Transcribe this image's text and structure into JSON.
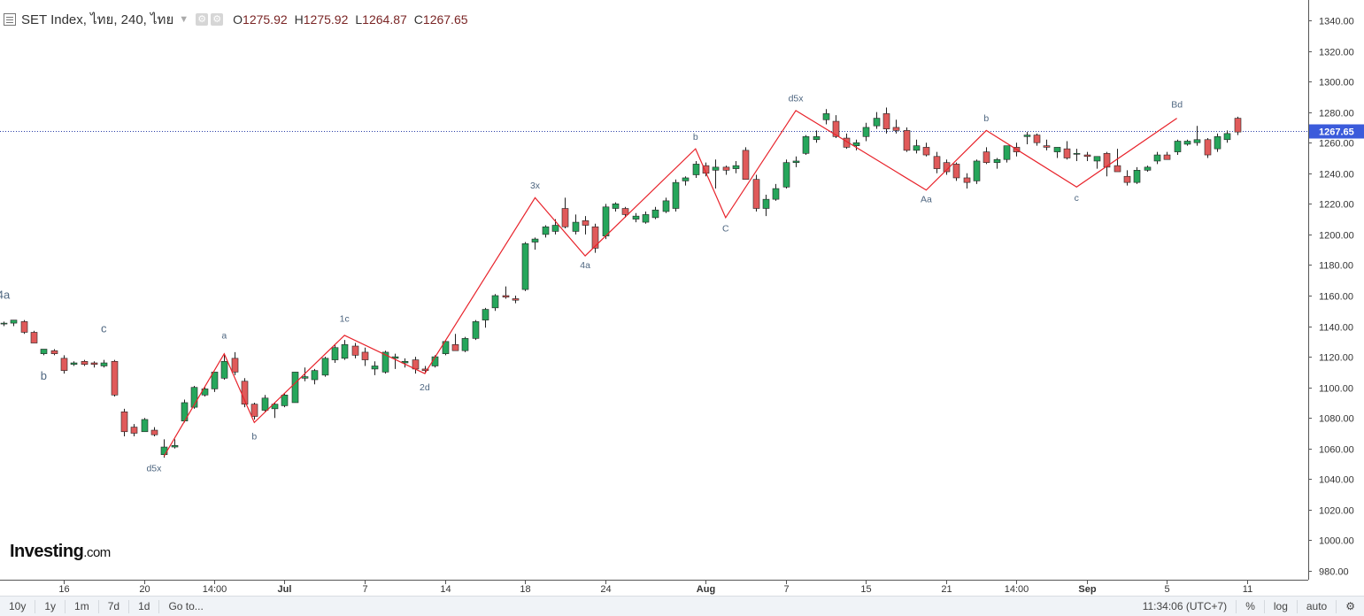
{
  "header": {
    "symbol": "SET Index, ไทย, 240, ไทย",
    "open_key": "O",
    "open": "1275.92",
    "high_key": "H",
    "high": "1275.92",
    "low_key": "L",
    "low": "1264.87",
    "close_key": "C",
    "close": "1267.65"
  },
  "icons": {
    "menu": "menu-icon",
    "caret": "chevron-down-icon",
    "settings": "gear-icon"
  },
  "colors": {
    "up": "#26a65b",
    "down": "#e05a5a",
    "wave": "#e8232b",
    "price_line": "#2b3ea8",
    "price_tag": "#3b5bdb",
    "label": "#4e6680"
  },
  "chart_data": {
    "type": "candlestick",
    "ylim": [
      980,
      1345
    ],
    "yticks": [
      "1340.00",
      "1320.00",
      "1300.00",
      "1280.00",
      "1260.00",
      "1240.00",
      "1220.00",
      "1200.00",
      "1180.00",
      "1160.00",
      "1140.00",
      "1120.00",
      "1100.00",
      "1080.00",
      "1060.00",
      "1040.00",
      "1020.00",
      "1000.00",
      "980.00"
    ],
    "xticks": [
      {
        "label": "16",
        "bar": 6,
        "bold": false
      },
      {
        "label": "20",
        "bar": 14,
        "bold": false
      },
      {
        "label": "14:00",
        "bar": 21,
        "bold": false
      },
      {
        "label": "Jul",
        "bar": 28,
        "bold": true
      },
      {
        "label": "7",
        "bar": 36,
        "bold": false
      },
      {
        "label": "14",
        "bar": 44,
        "bold": false
      },
      {
        "label": "18",
        "bar": 52,
        "bold": false
      },
      {
        "label": "24",
        "bar": 60,
        "bold": false
      },
      {
        "label": "Aug",
        "bar": 70,
        "bold": true
      },
      {
        "label": "7",
        "bar": 78,
        "bold": false
      },
      {
        "label": "15",
        "bar": 86,
        "bold": false
      },
      {
        "label": "21",
        "bar": 94,
        "bold": false
      },
      {
        "label": "14:00",
        "bar": 101,
        "bold": false
      },
      {
        "label": "Sep",
        "bar": 108,
        "bold": true
      },
      {
        "label": "5",
        "bar": 116,
        "bold": false
      },
      {
        "label": "11",
        "bar": 124,
        "bold": false
      }
    ],
    "last_price": "1267.65",
    "candles": [
      [
        1142,
        1143,
        1140,
        1142
      ],
      [
        1142,
        1144,
        1140,
        1144
      ],
      [
        1143,
        1144,
        1135,
        1136
      ],
      [
        1136,
        1137,
        1129,
        1129
      ],
      [
        1122,
        1125,
        1121,
        1125
      ],
      [
        1124,
        1125,
        1121,
        1122
      ],
      [
        1119,
        1121,
        1109,
        1111
      ],
      [
        1115,
        1117,
        1114,
        1116
      ],
      [
        1117,
        1118,
        1114,
        1115
      ],
      [
        1116,
        1117,
        1113,
        1115
      ],
      [
        1114,
        1118,
        1113,
        1116
      ],
      [
        1117,
        1118,
        1094,
        1095
      ],
      [
        1084,
        1086,
        1068,
        1071
      ],
      [
        1074,
        1076,
        1068,
        1070
      ],
      [
        1071,
        1080,
        1071,
        1079
      ],
      [
        1072,
        1074,
        1068,
        1069
      ],
      [
        1056,
        1066,
        1054,
        1061
      ],
      [
        1061,
        1066,
        1060,
        1062
      ],
      [
        1078,
        1092,
        1077,
        1090
      ],
      [
        1087,
        1101,
        1086,
        1100
      ],
      [
        1095,
        1100,
        1094,
        1099
      ],
      [
        1099,
        1110,
        1097,
        1110
      ],
      [
        1106,
        1122,
        1105,
        1117
      ],
      [
        1119,
        1123,
        1108,
        1110
      ],
      [
        1104,
        1106,
        1087,
        1089
      ],
      [
        1089,
        1090,
        1079,
        1081
      ],
      [
        1085,
        1095,
        1084,
        1093
      ],
      [
        1086,
        1090,
        1080,
        1089
      ],
      [
        1088,
        1096,
        1087,
        1095
      ],
      [
        1090,
        1110,
        1090,
        1110
      ],
      [
        1106,
        1113,
        1104,
        1107
      ],
      [
        1105,
        1112,
        1102,
        1111
      ],
      [
        1108,
        1120,
        1107,
        1119
      ],
      [
        1118,
        1128,
        1116,
        1126
      ],
      [
        1119,
        1131,
        1118,
        1128
      ],
      [
        1127,
        1129,
        1119,
        1121
      ],
      [
        1123,
        1126,
        1114,
        1118
      ],
      [
        1112,
        1117,
        1108,
        1114
      ],
      [
        1110,
        1124,
        1109,
        1123
      ],
      [
        1119,
        1122,
        1112,
        1120
      ],
      [
        1116,
        1119,
        1113,
        1117
      ],
      [
        1118,
        1120,
        1109,
        1112
      ],
      [
        1112,
        1114,
        1109,
        1111
      ],
      [
        1114,
        1121,
        1113,
        1120
      ],
      [
        1122,
        1131,
        1121,
        1130
      ],
      [
        1128,
        1135,
        1124,
        1124
      ],
      [
        1124,
        1133,
        1123,
        1132
      ],
      [
        1132,
        1144,
        1131,
        1143
      ],
      [
        1144,
        1152,
        1139,
        1151
      ],
      [
        1152,
        1161,
        1150,
        1160
      ],
      [
        1160,
        1166,
        1158,
        1159
      ],
      [
        1158,
        1160,
        1155,
        1157
      ],
      [
        1164,
        1195,
        1163,
        1194
      ],
      [
        1195,
        1198,
        1190,
        1197
      ],
      [
        1200,
        1206,
        1198,
        1205
      ],
      [
        1202,
        1210,
        1200,
        1206
      ],
      [
        1217,
        1224,
        1204,
        1205
      ],
      [
        1202,
        1213,
        1200,
        1208
      ],
      [
        1209,
        1212,
        1200,
        1206
      ],
      [
        1205,
        1207,
        1188,
        1191
      ],
      [
        1199,
        1220,
        1197,
        1218
      ],
      [
        1217,
        1221,
        1215,
        1220
      ],
      [
        1217,
        1218,
        1211,
        1213
      ],
      [
        1210,
        1214,
        1208,
        1212
      ],
      [
        1208,
        1215,
        1207,
        1213
      ],
      [
        1211,
        1218,
        1210,
        1216
      ],
      [
        1215,
        1224,
        1214,
        1222
      ],
      [
        1217,
        1236,
        1215,
        1234
      ],
      [
        1235,
        1238,
        1232,
        1237
      ],
      [
        1239,
        1248,
        1237,
        1246
      ],
      [
        1245,
        1247,
        1238,
        1240
      ],
      [
        1242,
        1249,
        1230,
        1244
      ],
      [
        1244,
        1245,
        1239,
        1242
      ],
      [
        1243,
        1248,
        1240,
        1245
      ],
      [
        1255,
        1257,
        1236,
        1236
      ],
      [
        1236,
        1239,
        1215,
        1217
      ],
      [
        1217,
        1226,
        1212,
        1223
      ],
      [
        1223,
        1233,
        1222,
        1230
      ],
      [
        1231,
        1249,
        1230,
        1247
      ],
      [
        1247,
        1251,
        1244,
        1248
      ],
      [
        1253,
        1265,
        1252,
        1264
      ],
      [
        1262,
        1268,
        1260,
        1264
      ],
      [
        1275,
        1282,
        1272,
        1279
      ],
      [
        1274,
        1278,
        1263,
        1264
      ],
      [
        1263,
        1266,
        1256,
        1257
      ],
      [
        1258,
        1262,
        1255,
        1260
      ],
      [
        1264,
        1273,
        1261,
        1270
      ],
      [
        1271,
        1280,
        1269,
        1276
      ],
      [
        1279,
        1283,
        1266,
        1269
      ],
      [
        1270,
        1275,
        1266,
        1268
      ],
      [
        1268,
        1270,
        1254,
        1255
      ],
      [
        1255,
        1262,
        1253,
        1258
      ],
      [
        1257,
        1260,
        1251,
        1252
      ],
      [
        1251,
        1254,
        1240,
        1243
      ],
      [
        1247,
        1249,
        1239,
        1241
      ],
      [
        1246,
        1247,
        1235,
        1237
      ],
      [
        1237,
        1240,
        1230,
        1234
      ],
      [
        1235,
        1249,
        1233,
        1248
      ],
      [
        1254,
        1257,
        1246,
        1247
      ],
      [
        1247,
        1250,
        1243,
        1249
      ],
      [
        1249,
        1258,
        1247,
        1258
      ],
      [
        1257,
        1260,
        1251,
        1254
      ],
      [
        1264,
        1267,
        1259,
        1265
      ],
      [
        1265,
        1266,
        1258,
        1260
      ],
      [
        1258,
        1262,
        1255,
        1257
      ],
      [
        1254,
        1257,
        1250,
        1257
      ],
      [
        1256,
        1261,
        1249,
        1250
      ],
      [
        1253,
        1256,
        1248,
        1253
      ],
      [
        1252,
        1254,
        1248,
        1251
      ],
      [
        1248,
        1251,
        1243,
        1251
      ],
      [
        1253,
        1254,
        1238,
        1244
      ],
      [
        1245,
        1256,
        1241,
        1241
      ],
      [
        1238,
        1242,
        1232,
        1234
      ],
      [
        1234,
        1244,
        1233,
        1242
      ],
      [
        1242,
        1245,
        1241,
        1244
      ],
      [
        1248,
        1254,
        1246,
        1252
      ],
      [
        1252,
        1254,
        1249,
        1249
      ],
      [
        1254,
        1262,
        1252,
        1261
      ],
      [
        1259,
        1262,
        1258,
        1261
      ],
      [
        1260,
        1271,
        1258,
        1262
      ],
      [
        1262,
        1263,
        1250,
        1252
      ],
      [
        1256,
        1266,
        1254,
        1264
      ],
      [
        1262,
        1268,
        1260,
        1266
      ],
      [
        1276,
        1277,
        1265,
        1267
      ]
    ],
    "wave_path": [
      [
        16,
        1055
      ],
      [
        22,
        1122
      ],
      [
        25,
        1077
      ],
      [
        34,
        1134
      ],
      [
        42,
        1109
      ],
      [
        53,
        1224
      ],
      [
        58,
        1186
      ],
      [
        69,
        1256
      ],
      [
        72,
        1211
      ],
      [
        79,
        1281
      ],
      [
        92,
        1229
      ],
      [
        98,
        1268
      ],
      [
        107,
        1231
      ],
      [
        117,
        1276
      ]
    ],
    "annotations": [
      {
        "text": "4a",
        "bar": 0,
        "y": 1158
      },
      {
        "text": "b",
        "bar": 4,
        "y": 1105
      },
      {
        "text": "c",
        "bar": 10,
        "y": 1136
      },
      {
        "text": "d5x",
        "bar": 15,
        "y": 1045
      },
      {
        "text": "a",
        "bar": 22,
        "y": 1132
      },
      {
        "text": "b",
        "bar": 25,
        "y": 1066
      },
      {
        "text": "1c",
        "bar": 34,
        "y": 1143
      },
      {
        "text": "2d",
        "bar": 42,
        "y": 1098
      },
      {
        "text": "3x",
        "bar": 53,
        "y": 1230
      },
      {
        "text": "4a",
        "bar": 58,
        "y": 1178
      },
      {
        "text": "b",
        "bar": 69,
        "y": 1262
      },
      {
        "text": "C",
        "bar": 72,
        "y": 1202
      },
      {
        "text": "d5x",
        "bar": 79,
        "y": 1287
      },
      {
        "text": "Aa",
        "bar": 92,
        "y": 1221
      },
      {
        "text": "b",
        "bar": 98,
        "y": 1274
      },
      {
        "text": "c",
        "bar": 107,
        "y": 1222
      },
      {
        "text": "Bd",
        "bar": 117,
        "y": 1283
      }
    ]
  },
  "toolbar": {
    "ranges": [
      "10y",
      "1y",
      "1m",
      "7d",
      "1d",
      "Go to..."
    ],
    "time": "11:34:06 (UTC+7)",
    "percent": "%",
    "log": "log",
    "auto": "auto"
  },
  "logo": {
    "name": "Investing",
    "domain": ".com"
  }
}
